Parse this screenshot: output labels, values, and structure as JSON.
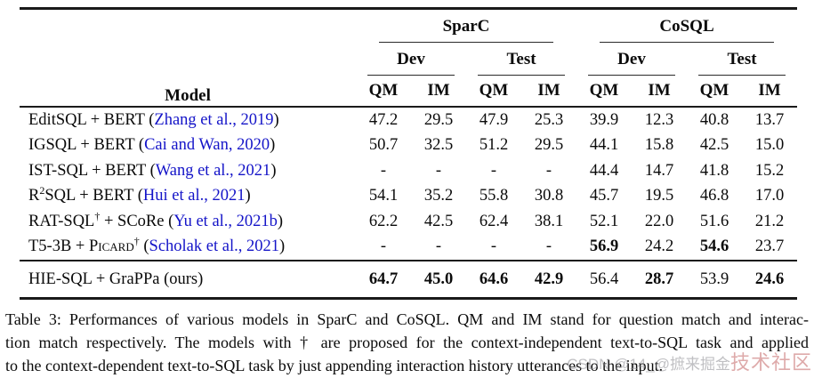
{
  "header": {
    "model_label": "Model",
    "groups": [
      "SparC",
      "CoSQL"
    ],
    "splits": [
      "Dev",
      "Test",
      "Dev",
      "Test"
    ],
    "metrics": [
      "QM",
      "IM",
      "QM",
      "IM",
      "QM",
      "IM",
      "QM",
      "IM"
    ]
  },
  "rows": [
    {
      "m0": "EditSQL + BERT (",
      "sc": "",
      "sup": "",
      "m1": "",
      "cite": "Zhang et al., 2019",
      "m2": ")",
      "v": [
        "47.2",
        "29.5",
        "47.9",
        "25.3",
        "39.9",
        "12.3",
        "40.8",
        "13.7"
      ]
    },
    {
      "m0": "IGSQL + BERT (",
      "sc": "",
      "sup": "",
      "m1": "",
      "cite": "Cai and Wan, 2020",
      "m2": ")",
      "v": [
        "50.7",
        "32.5",
        "51.2",
        "29.5",
        "44.1",
        "15.8",
        "42.5",
        "15.0"
      ]
    },
    {
      "m0": "IST-SQL + BERT (",
      "sc": "",
      "sup": "",
      "m1": "",
      "cite": "Wang et al., 2021",
      "m2": ")",
      "v": [
        "-",
        "-",
        "-",
        "-",
        "44.4",
        "14.7",
        "41.8",
        "15.2"
      ]
    },
    {
      "m0": "R",
      "sc": "",
      "sup": "2",
      "m1": "SQL + BERT (",
      "cite": "Hui et al., 2021",
      "m2": ")",
      "v": [
        "54.1",
        "35.2",
        "55.8",
        "30.8",
        "45.7",
        "19.5",
        "46.8",
        "17.0"
      ]
    },
    {
      "m0": "RAT-SQL",
      "sc": "",
      "sup": "†",
      "m1": " + SCoRe (",
      "cite": "Yu et al., 2021b",
      "m2": ")",
      "v": [
        "62.2",
        "42.5",
        "62.4",
        "38.1",
        "52.1",
        "22.0",
        "51.6",
        "21.2"
      ]
    },
    {
      "m0": "T5-3B + ",
      "sc": "Picard",
      "sup": "†",
      "m1": " (",
      "cite": "Scholak et al., 2021",
      "m2": ")",
      "v": [
        "-",
        "-",
        "-",
        "-",
        "56.9",
        "24.2",
        "54.6",
        "23.7"
      ]
    }
  ],
  "ours": {
    "m0": "HIE-SQL + GraPPa (ours)",
    "v": [
      "64.7",
      "45.0",
      "64.6",
      "42.9",
      "56.4",
      "28.7",
      "53.9",
      "24.6"
    ]
  },
  "caption": {
    "line1": "Table 3: Performances of various models in SparC and CoSQL. QM and IM stand for question match and interac-",
    "line2": "tion match respectively. The models with † are proposed for the context-independent text-to-SQL task and applied",
    "line3": "to the context-dependent text-to-SQL task by just appending interaction history utterances to the input."
  },
  "watermark": {
    "left": "CSDN @14_@摭来掘金",
    "right": "技术社区"
  },
  "colors": {
    "citation_blue": "#1414c8",
    "rule": "#1a1a1a",
    "watermark_pink": "#cd7d7d"
  }
}
